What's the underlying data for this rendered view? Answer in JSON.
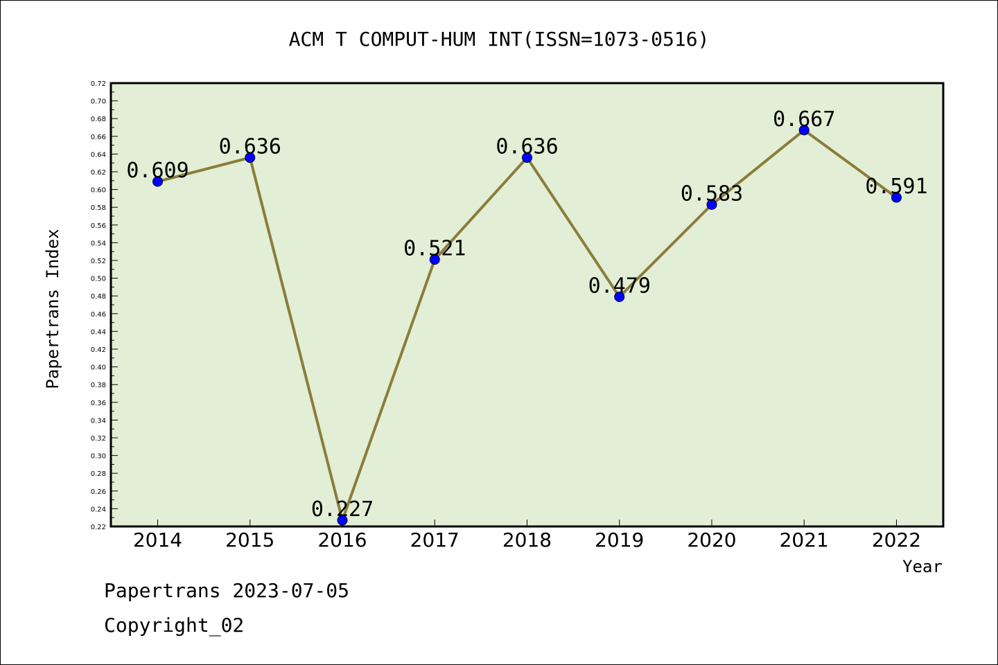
{
  "chart_data": {
    "type": "line",
    "title": "ACM T COMPUT-HUM INT(ISSN=1073-0516)",
    "xlabel": "Year",
    "ylabel": "Papertrans Index",
    "categories": [
      "2014",
      "2015",
      "2016",
      "2017",
      "2018",
      "2019",
      "2020",
      "2021",
      "2022"
    ],
    "values": [
      0.609,
      0.636,
      0.227,
      0.521,
      0.636,
      0.479,
      0.583,
      0.667,
      0.591
    ],
    "data_labels": [
      "0.609",
      "0.636",
      "0.227",
      "0.521",
      "0.636",
      "0.479",
      "0.583",
      "0.667",
      "0.591"
    ],
    "ylim": [
      0.22,
      0.72
    ],
    "yticks": [
      "0.22",
      "0.24",
      "0.26",
      "0.28",
      "0.30",
      "0.32",
      "0.34",
      "0.36",
      "0.38",
      "0.40",
      "0.42",
      "0.44",
      "0.46",
      "0.48",
      "0.50",
      "0.52",
      "0.54",
      "0.56",
      "0.58",
      "0.60",
      "0.62",
      "0.64",
      "0.66",
      "0.68",
      "0.70",
      "0.72"
    ],
    "grid": false,
    "colors": {
      "plot_background": "#e2efd6",
      "line": "#8b7d3a",
      "marker": "#0000ff"
    }
  },
  "footer": {
    "source": "Papertrans 2023-07-05",
    "copyright": "Copyright_02"
  }
}
